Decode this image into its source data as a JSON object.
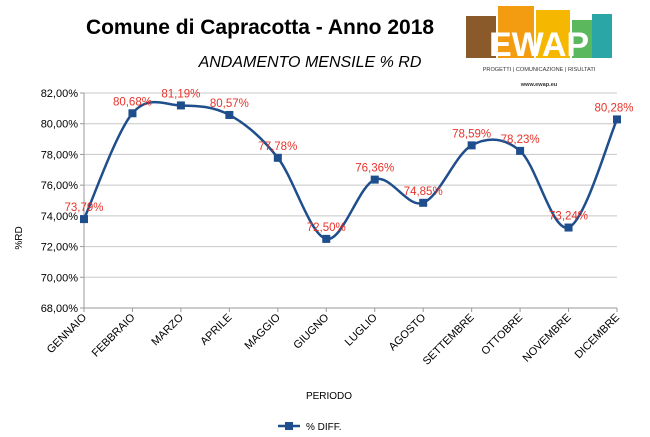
{
  "header": {
    "title": "Comune di Capracotta - Anno 2018",
    "subtitle": "ANDAMENTO MENSILE % RD"
  },
  "logo": {
    "wordmark": "EWAP",
    "tagline": "PROGETTI | COMUNICAZIONE | RISULTATI",
    "url": "www.ewap.eu",
    "colors": [
      "#8b5a2b",
      "#f39c12",
      "#f5b700",
      "#5cb85c",
      "#2aa6a6"
    ]
  },
  "chart_data": {
    "type": "line",
    "smooth": true,
    "categories": [
      "GENNAIO",
      "FEBBRAIO",
      "MARZO",
      "APRILE",
      "MAGGIO",
      "GIUGNO",
      "LUGLIO",
      "AGOSTO",
      "SETTEMBRE",
      "OTTOBRE",
      "NOVEMBRE",
      "DICEMBRE"
    ],
    "series": [
      {
        "name": "% DIFF.",
        "values": [
          73.79,
          80.68,
          81.19,
          80.57,
          77.78,
          72.5,
          76.36,
          74.85,
          78.59,
          78.23,
          73.24,
          80.28
        ],
        "labels": [
          "73,79%",
          "80,68%",
          "81,19%",
          "80,57%",
          "77,78%",
          "72,50%",
          "76,36%",
          "74,85%",
          "78,59%",
          "78,23%",
          "73,24%",
          "80,28%"
        ],
        "color": "#1f4e8c",
        "label_color": "#e8332b"
      }
    ],
    "ylim": [
      68,
      82
    ],
    "yticks": [
      68,
      70,
      72,
      74,
      76,
      78,
      80,
      82
    ],
    "ytick_labels": [
      "68,00%",
      "70,00%",
      "72,00%",
      "74,00%",
      "76,00%",
      "78,00%",
      "80,00%",
      "82,00%"
    ],
    "xlabel": "PERIODO",
    "ylabel": "%RD",
    "grid": "horizontal",
    "legend_position": "bottom"
  }
}
